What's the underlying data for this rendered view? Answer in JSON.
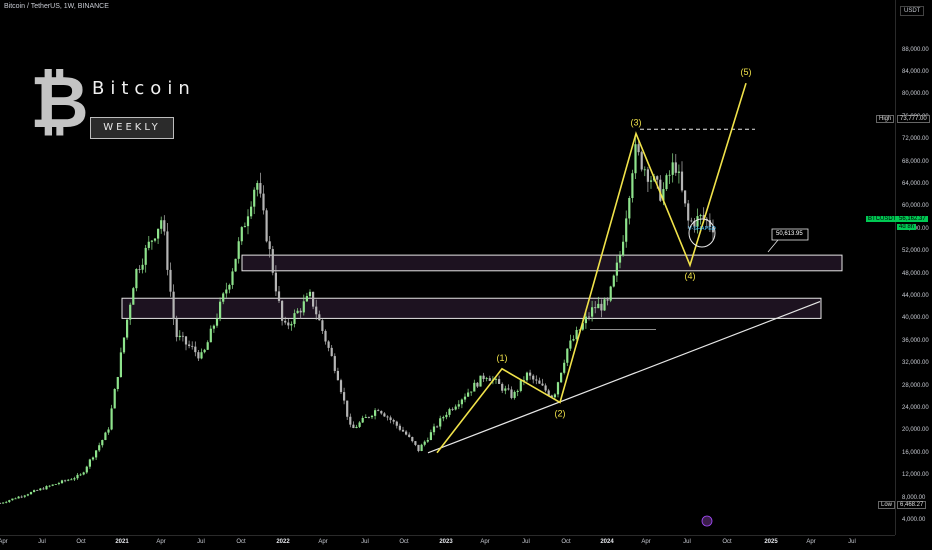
{
  "header": {
    "symbol_line": "Bitcoin / TetherUS, 1W, BINANCE",
    "currency": "USDT"
  },
  "branding": {
    "title": "Bitcoin",
    "badge": "WEEKLY",
    "logo_icon": "bitcoin-logo-icon"
  },
  "colors": {
    "background": "#000000",
    "up": "#8ee38c",
    "down": "#b5b5b5",
    "wave": "#f0e24a",
    "zone_fill": "#2a1a2e",
    "price_tag": "#00c853"
  },
  "price_axis": {
    "ticks": [
      "88,000.00",
      "84,000.00",
      "80,000.00",
      "76,000.00",
      "72,000.00",
      "68,000.00",
      "64,000.00",
      "60,000.00",
      "56,000.00",
      "52,000.00",
      "48,000.00",
      "44,000.00",
      "40,000.00",
      "36,000.00",
      "32,000.00",
      "28,000.00",
      "24,000.00",
      "20,000.00",
      "16,000.00",
      "12,000.00",
      "8,000.00",
      "4,000.00"
    ],
    "high_label": "High",
    "high_value": "73,777.00",
    "low_label": "Low",
    "low_value": "6,468.27",
    "last_symbol": "BTCUSDT",
    "last_price": "56,162.37",
    "countdown": "4d 8h"
  },
  "time_axis": {
    "labels": [
      {
        "t": "Apr",
        "bold": false
      },
      {
        "t": "Jul",
        "bold": false
      },
      {
        "t": "Oct",
        "bold": false
      },
      {
        "t": "2021",
        "bold": true
      },
      {
        "t": "Apr",
        "bold": false
      },
      {
        "t": "Jul",
        "bold": false
      },
      {
        "t": "Oct",
        "bold": false
      },
      {
        "t": "2022",
        "bold": true
      },
      {
        "t": "Apr",
        "bold": false
      },
      {
        "t": "Jul",
        "bold": false
      },
      {
        "t": "Oct",
        "bold": false
      },
      {
        "t": "2023",
        "bold": true
      },
      {
        "t": "Apr",
        "bold": false
      },
      {
        "t": "Jul",
        "bold": false
      },
      {
        "t": "Oct",
        "bold": false
      },
      {
        "t": "2024",
        "bold": true
      },
      {
        "t": "Apr",
        "bold": false
      },
      {
        "t": "Jul",
        "bold": false
      },
      {
        "t": "Oct",
        "bold": false
      },
      {
        "t": "2025",
        "bold": true
      },
      {
        "t": "Apr",
        "bold": false
      },
      {
        "t": "Jul",
        "bold": false
      }
    ]
  },
  "annotations": {
    "wave_labels": [
      "(1)",
      "(2)",
      "(3)",
      "(4)",
      "(5)"
    ],
    "callout": "50,613.95",
    "circle_text": "V-SHAPED"
  },
  "chart_data": {
    "type": "candlestick",
    "title": "Bitcoin / TetherUS, 1W, BINANCE",
    "ylim": [
      4000,
      92000
    ],
    "x_range": [
      "2020-04",
      "2025-09"
    ],
    "close_path": [
      [
        "2020-04",
        7000
      ],
      [
        "2020-07",
        9500
      ],
      [
        "2020-10",
        12000
      ],
      [
        "2020-12",
        20000
      ],
      [
        "2021-01",
        34000
      ],
      [
        "2021-02",
        48000
      ],
      [
        "2021-04",
        58000
      ],
      [
        "2021-05",
        37000
      ],
      [
        "2021-07",
        33000
      ],
      [
        "2021-09",
        47000
      ],
      [
        "2021-11",
        65000
      ],
      [
        "2022-01",
        38000
      ],
      [
        "2022-03",
        44000
      ],
      [
        "2022-05",
        30000
      ],
      [
        "2022-06",
        20000
      ],
      [
        "2022-08",
        24000
      ],
      [
        "2022-10",
        19500
      ],
      [
        "2022-11",
        16500
      ],
      [
        "2023-01",
        23000
      ],
      [
        "2023-04",
        30000
      ],
      [
        "2023-06",
        26000
      ],
      [
        "2023-07",
        30000
      ],
      [
        "2023-09",
        26000
      ],
      [
        "2023-10",
        34500
      ],
      [
        "2023-12",
        42000
      ],
      [
        "2024-01",
        42500
      ],
      [
        "2024-02",
        52000
      ],
      [
        "2024-03",
        70000
      ],
      [
        "2024-05",
        62000
      ],
      [
        "2024-06",
        68000
      ],
      [
        "2024-07",
        57000
      ],
      [
        "2024-08",
        58000
      ],
      [
        "2024-09",
        56162.37
      ]
    ],
    "wave_points": [
      {
        "label": "start",
        "date": "2022-11",
        "price": 16000
      },
      {
        "label": "(1)",
        "date": "2023-04",
        "price": 31000
      },
      {
        "label": "(2)",
        "date": "2023-09",
        "price": 25000
      },
      {
        "label": "(3)",
        "date": "2024-03",
        "price": 73000
      },
      {
        "label": "(4)",
        "date": "2024-08",
        "price": 49500
      },
      {
        "label": "(5)",
        "date": "2024-12",
        "price": 82000
      }
    ],
    "zones": [
      [
        48500,
        51300
      ],
      [
        40000,
        43600
      ]
    ],
    "trendline": [
      {
        "date": "2022-11",
        "price": 16000
      },
      {
        "date": "2025-04",
        "price": 43000
      }
    ],
    "resistance": 73777,
    "support_line": 38000
  }
}
